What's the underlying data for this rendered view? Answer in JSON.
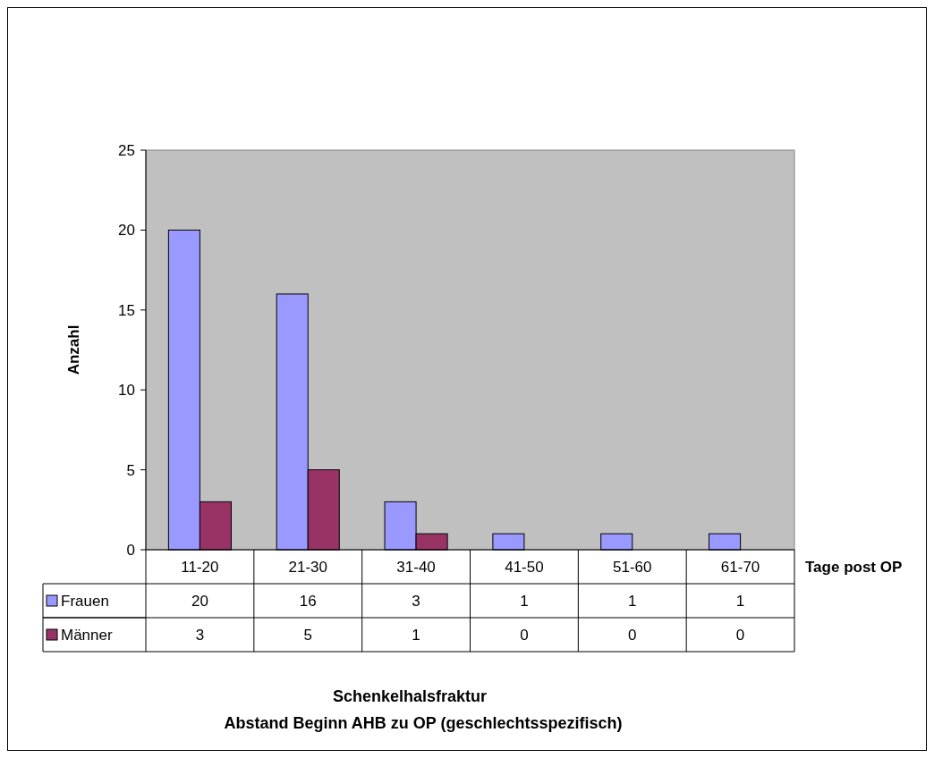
{
  "chart_data": {
    "type": "bar",
    "title": "Schenkelhalsfraktur",
    "subtitle": "Abstand Beginn AHB zu OP (geschlechtsspezifisch)",
    "xlabel": "Tage post OP",
    "ylabel": "Anzahl",
    "categories": [
      "11-20",
      "21-30",
      "31-40",
      "41-50",
      "51-60",
      "61-70"
    ],
    "series": [
      {
        "name": "Frauen",
        "color": "#9999ff",
        "values": [
          20,
          16,
          3,
          1,
          1,
          1
        ]
      },
      {
        "name": "Männer",
        "color": "#993366",
        "values": [
          3,
          5,
          1,
          0,
          0,
          0
        ]
      }
    ],
    "ylim": [
      0,
      25
    ],
    "yticks": [
      0,
      5,
      10,
      15,
      20,
      25
    ],
    "data_labels": true,
    "legend": "bottom"
  }
}
